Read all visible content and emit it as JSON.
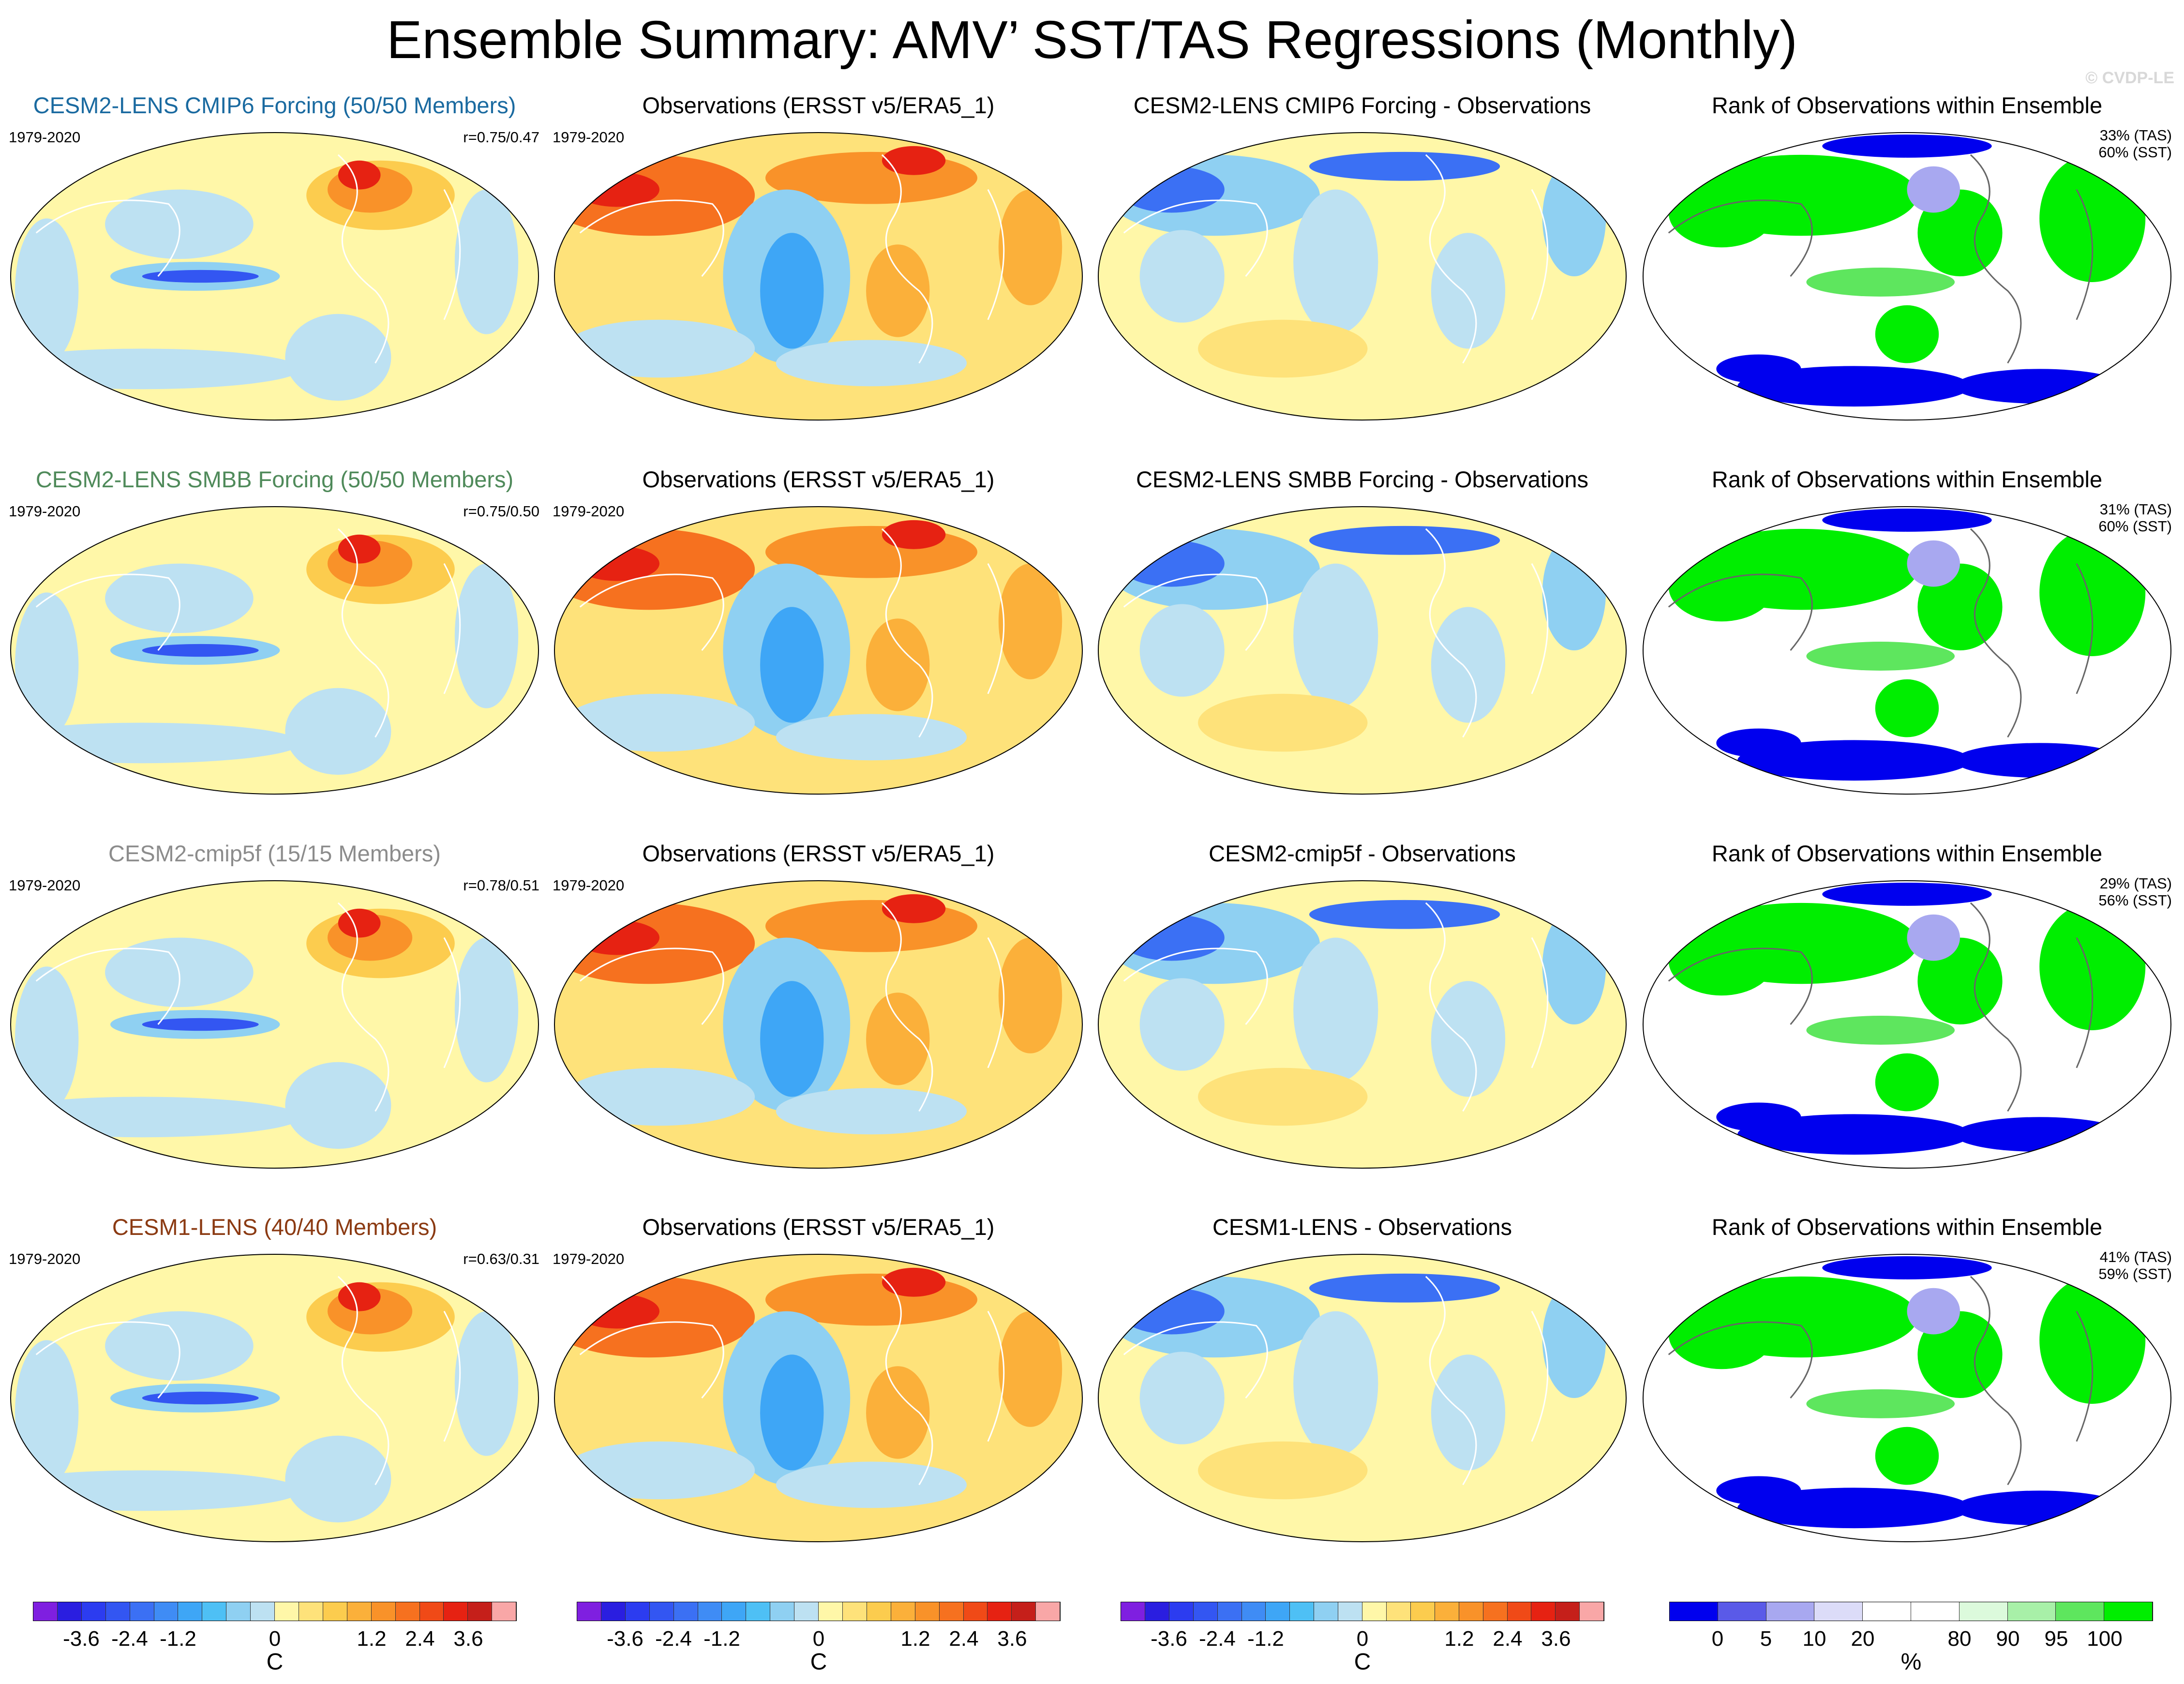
{
  "title": "Ensemble Summary: AMV’ SST/TAS Regressions (Monthly)",
  "credit": "© CVDP-LE",
  "period": "1979-2020",
  "colors": {
    "cesm2_cmip6": "#1a6aa0",
    "cesm2_smbb": "#4f8a5a",
    "cesm2_cmip5f": "#8c8c8c",
    "cesm1": "#8b3a12"
  },
  "rows": [
    {
      "model_title": "CESM2-LENS CMIP6 Forcing (50/50 Members)",
      "model_color": "#1a6aa0",
      "corr": "r=0.75/0.47",
      "obs_title": "Observations (ERSST v5/ERA5_1)",
      "diff_title": "CESM2-LENS CMIP6 Forcing - Observations",
      "rank_title": "Rank of Observations within Ensemble",
      "rank_tas": "33% (TAS)",
      "rank_sst": "60% (SST)"
    },
    {
      "model_title": "CESM2-LENS SMBB Forcing (50/50 Members)",
      "model_color": "#4f8a5a",
      "corr": "r=0.75/0.50",
      "obs_title": "Observations (ERSST v5/ERA5_1)",
      "diff_title": "CESM2-LENS SMBB Forcing - Observations",
      "rank_title": "Rank of Observations within Ensemble",
      "rank_tas": "31% (TAS)",
      "rank_sst": "60% (SST)"
    },
    {
      "model_title": "CESM2-cmip5f (15/15 Members)",
      "model_color": "#8c8c8c",
      "corr": "r=0.78/0.51",
      "obs_title": "Observations (ERSST v5/ERA5_1)",
      "diff_title": "CESM2-cmip5f - Observations",
      "rank_title": "Rank of Observations within Ensemble",
      "rank_tas": "29% (TAS)",
      "rank_sst": "56% (SST)"
    },
    {
      "model_title": "CESM1-LENS (40/40 Members)",
      "model_color": "#8b3a12",
      "corr": "r=0.63/0.31",
      "obs_title": "Observations (ERSST v5/ERA5_1)",
      "diff_title": "CESM1-LENS - Observations",
      "rank_title": "Rank of Observations within Ensemble",
      "rank_tas": "41% (TAS)",
      "rank_sst": "59% (SST)"
    }
  ],
  "temp_colorbar": {
    "ticks": [
      "-3.6",
      "-2.4",
      "-1.2",
      "0",
      "1.2",
      "2.4",
      "3.6"
    ],
    "unit": "C",
    "colors": [
      "#7f1fe0",
      "#2a1ee0",
      "#2c3cf0",
      "#3356f2",
      "#3b70f4",
      "#3f8cf5",
      "#3ea6f6",
      "#4ec0f5",
      "#8fd0f2",
      "#bde1f2",
      "#fff7a8",
      "#fee27a",
      "#fccc4e",
      "#fbb03a",
      "#f99229",
      "#f6711f",
      "#f04a17",
      "#e62212",
      "#c51f1a",
      "#f9a7a7"
    ]
  },
  "rank_colorbar": {
    "ticks": [
      "0",
      "5",
      "10",
      "20",
      "80",
      "90",
      "95",
      "100"
    ],
    "unit": "%",
    "colors": [
      "#0000ee",
      "#5a5ae8",
      "#a8a8f0",
      "#dcdcf8",
      "#ffffff",
      "#ffffff",
      "#dcfadc",
      "#a8f0a8",
      "#5ee65e",
      "#00ee00"
    ]
  }
}
